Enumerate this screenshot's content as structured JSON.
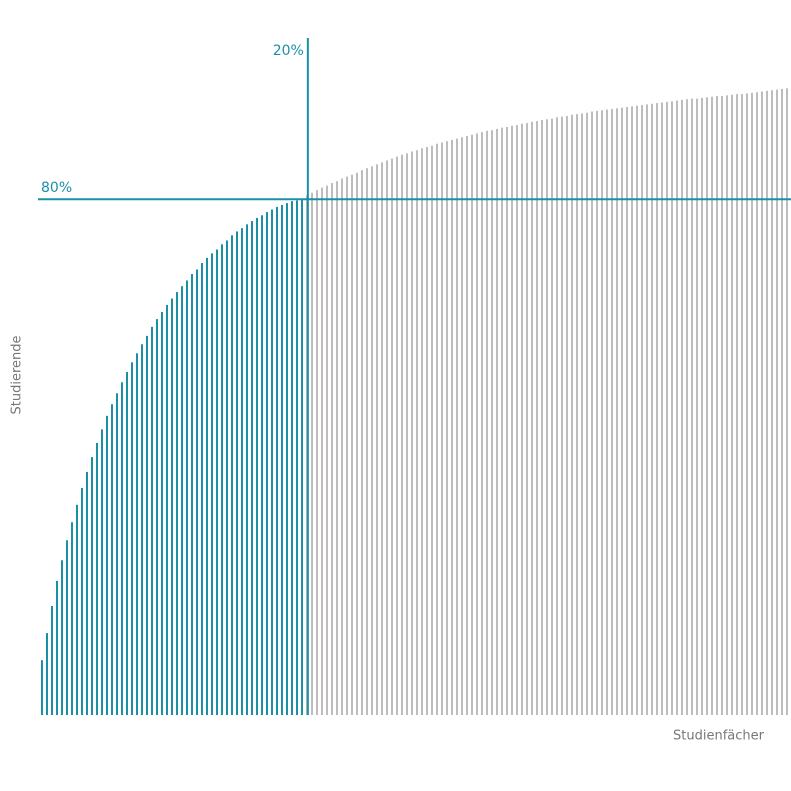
{
  "chart_data": {
    "type": "bar",
    "x_label": "Studienfächer",
    "y_label": "Studierende",
    "values": [
      8.5,
      12.7,
      16.9,
      20.8,
      24,
      27.1,
      29.9,
      32.6,
      35.2,
      37.7,
      40,
      42.2,
      44.3,
      46.4,
      48.2,
      49.9,
      51.6,
      53.2,
      54.7,
      56.1,
      57.5,
      58.8,
      60.2,
      61.4,
      62.5,
      63.6,
      64.6,
      65.6,
      66.5,
      67.4,
      68.4,
      69.1,
      70.1,
      70.9,
      71.6,
      72.2,
      73,
      73.6,
      74.4,
      75,
      75.5,
      76.1,
      76.6,
      77.1,
      77.5,
      78,
      78.4,
      78.8,
      79.1,
      79.4,
      79.7,
      79.8,
      80,
      80.6,
      81,
      81.4,
      81.8,
      82.1,
      82.5,
      82.8,
      83.2,
      83.5,
      83.8,
      84.1,
      84.5,
      84.8,
      85.1,
      85.4,
      85.7,
      86,
      86.3,
      86.6,
      86.9,
      87.1,
      87.4,
      87.6,
      87.9,
      88.1,
      88.3,
      88.6,
      88.8,
      89,
      89.2,
      89.4,
      89.6,
      89.8,
      90,
      90.2,
      90.4,
      90.6,
      90.7,
      90.9,
      91.1,
      91.2,
      91.4,
      91.5,
      91.7,
      91.8,
      92,
      92.1,
      92.3,
      92.4,
      92.5,
      92.7,
      92.8,
      92.9,
      93.1,
      93.2,
      93.3,
      93.4,
      93.6,
      93.7,
      93.8,
      93.9,
      94,
      94.1,
      94.2,
      94.3,
      94.4,
      94.5,
      94.6,
      94.7,
      94.8,
      94.9,
      95,
      95.1,
      95.2,
      95.3,
      95.4,
      95.5,
      95.6,
      95.6,
      95.7,
      95.8,
      95.9,
      96,
      96,
      96.1,
      96.2,
      96.3,
      96.3,
      96.4,
      96.5,
      96.6,
      96.7,
      96.8,
      96.9,
      97,
      97.1,
      97.2
    ],
    "highlight_color": "#1b8fa6",
    "color": "#bdbdbd",
    "ylim": [
      0,
      105
    ],
    "xlim": [
      0,
      56
    ],
    "reference_lines": {
      "x": {
        "value": 20,
        "label": "20%"
      },
      "y": {
        "value": 80,
        "label": "80%"
      }
    }
  }
}
